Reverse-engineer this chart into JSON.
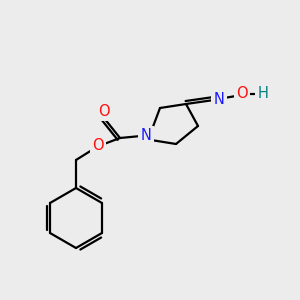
{
  "background_color": "#ececec",
  "bond_color": "#000000",
  "atom_colors": {
    "N": "#1919ff",
    "O": "#ff0d0d",
    "O_teal": "#008080",
    "C": "#000000"
  },
  "figsize": [
    3.0,
    3.0
  ],
  "dpi": 100,
  "bond_lw": 1.6,
  "font_size": 10.5
}
